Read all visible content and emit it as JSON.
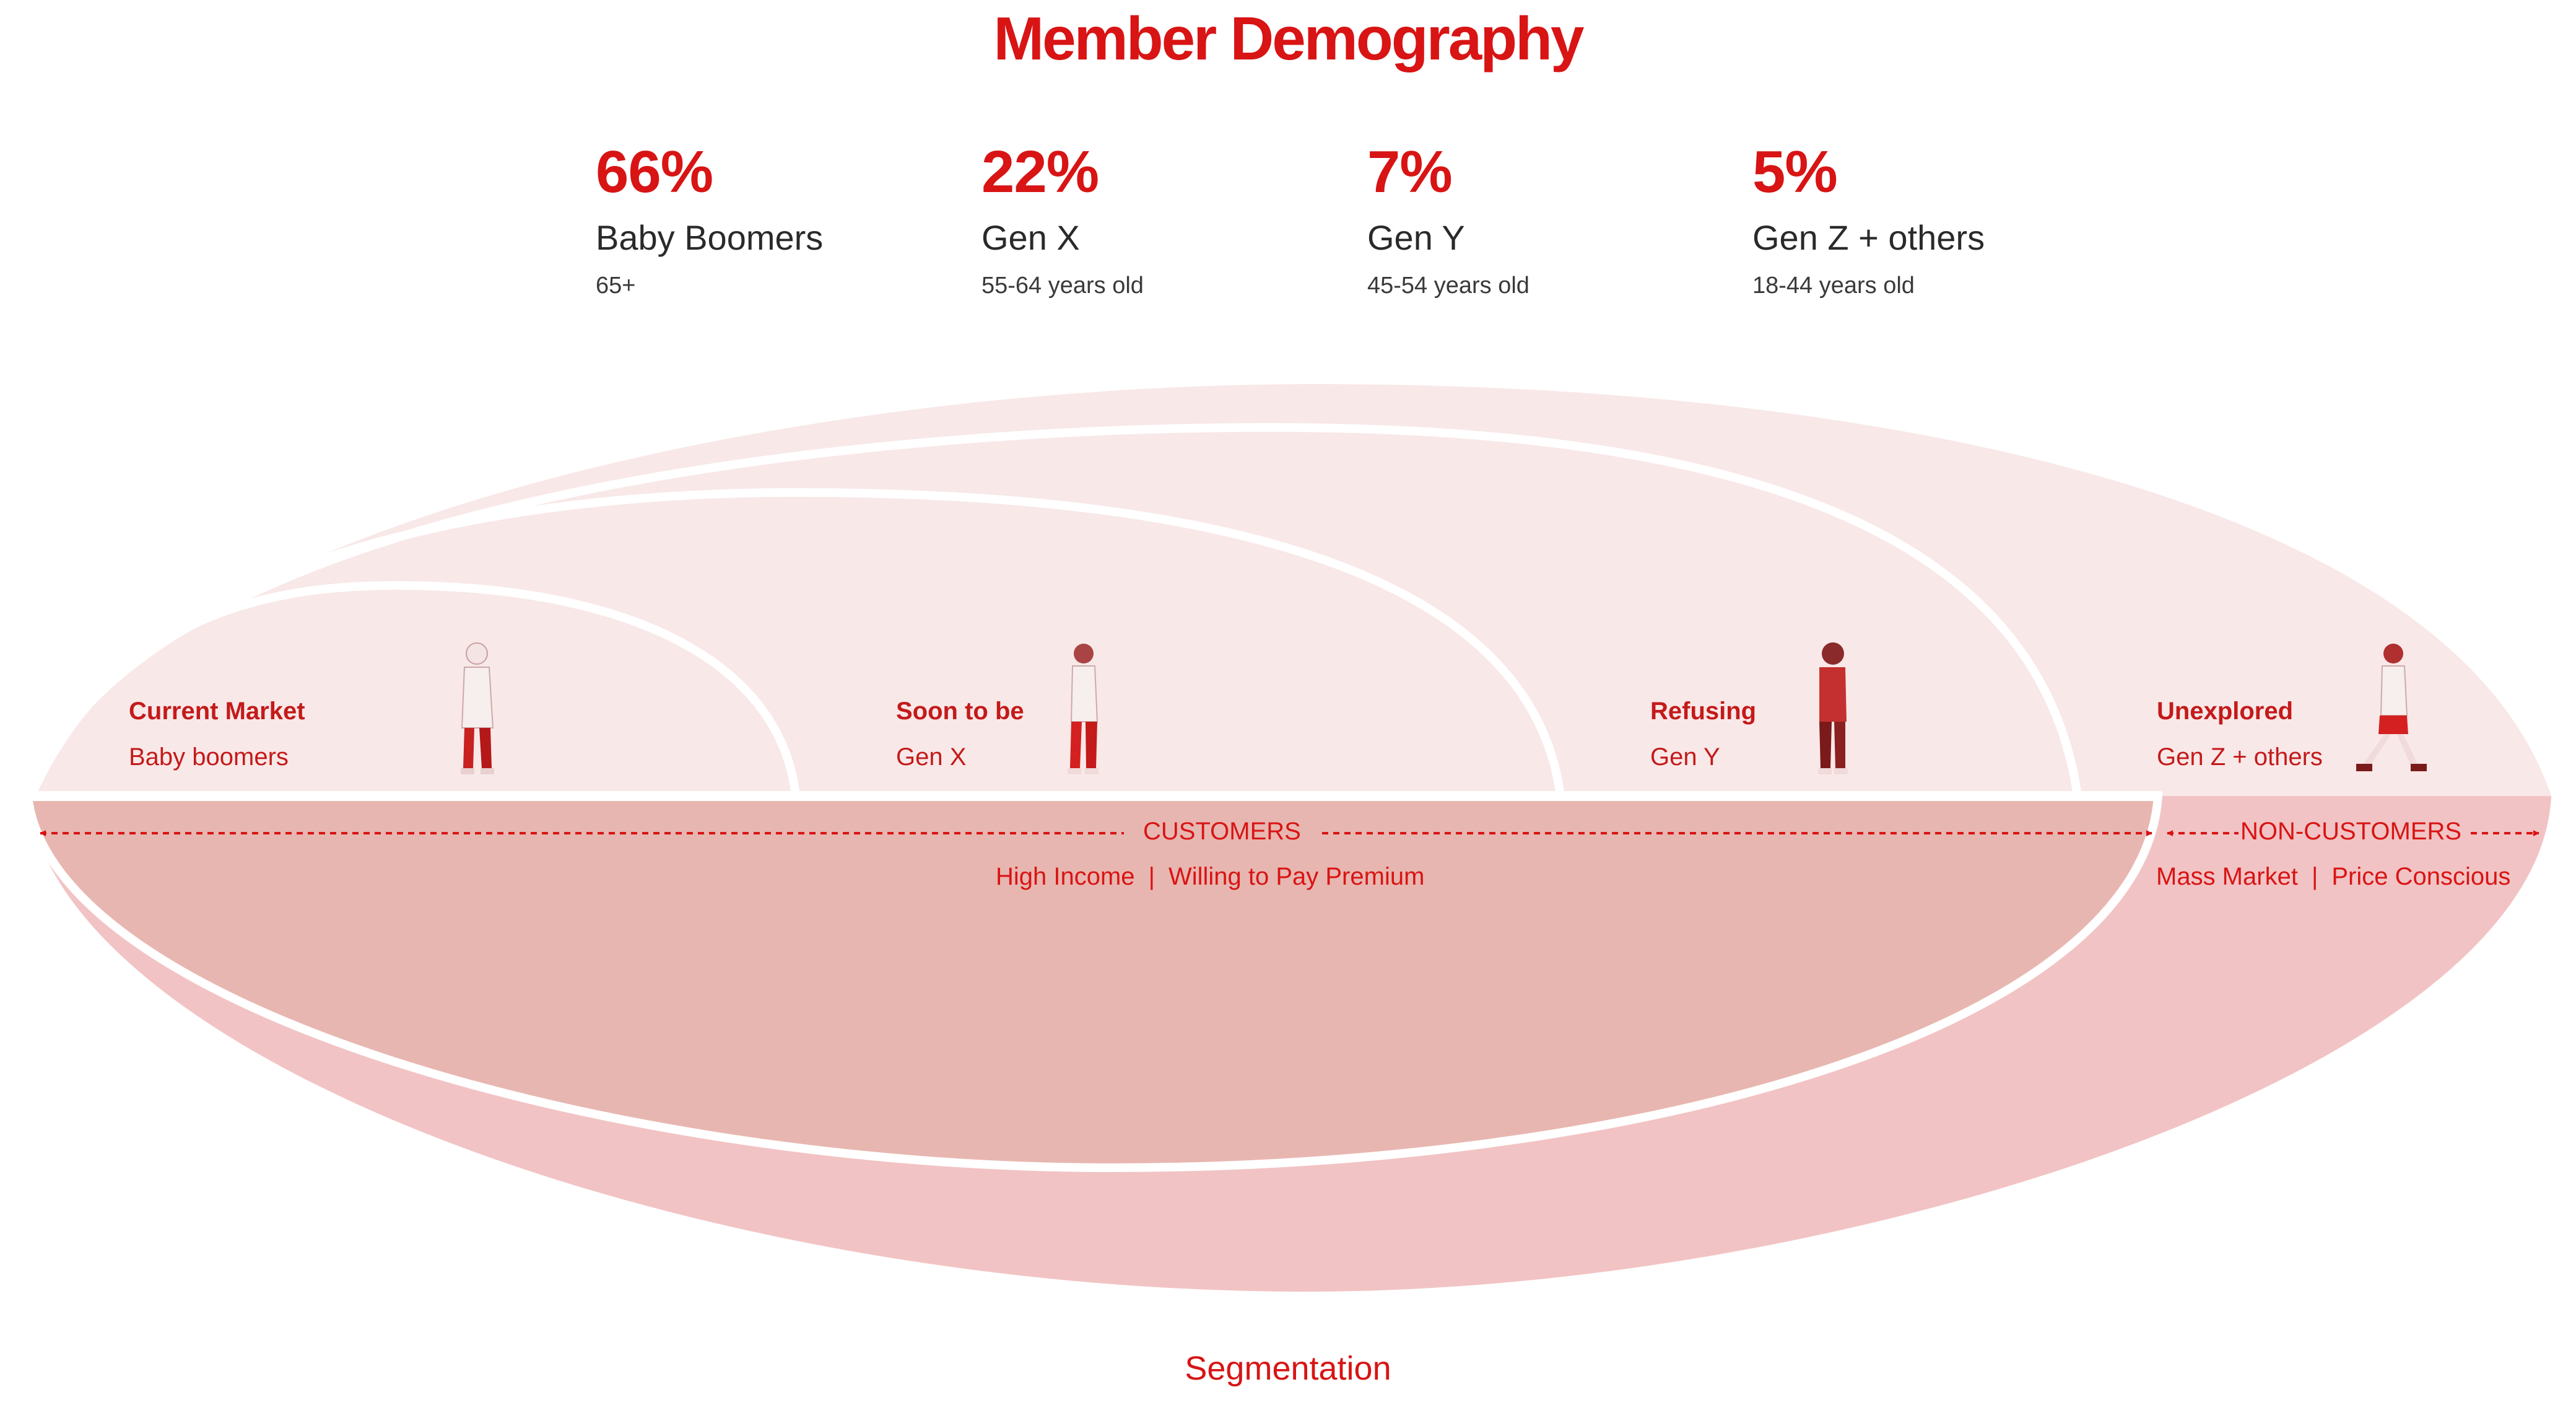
{
  "title": "Member Demography",
  "stats": [
    {
      "percent": "66%",
      "label": "Baby Boomers",
      "range": "65+"
    },
    {
      "percent": "22%",
      "label": "Gen X",
      "range": "55-64 years old"
    },
    {
      "percent": "7%",
      "label": "Gen Y",
      "range": "45-54 years old"
    },
    {
      "percent": "5%",
      "label": "Gen Z + others",
      "range": "18-44 years old"
    }
  ],
  "segments": [
    {
      "name": "Current Market",
      "sub": "Baby boomers"
    },
    {
      "name": "Soon to be",
      "sub": "Gen X"
    },
    {
      "name": "Refusing",
      "sub": "Gen Y"
    },
    {
      "name": "Unexplored",
      "sub": "Gen Z + others"
    }
  ],
  "customers": {
    "label": "CUSTOMERS",
    "attr1": "High Income",
    "separator": "|",
    "attr2": "Willing to Pay Premium"
  },
  "non_customers": {
    "label": "NON-CUSTOMERS",
    "attr1": "Mass Market",
    "separator": "|",
    "attr2": "Price Conscious"
  },
  "footer": "Segmentation",
  "colors": {
    "accent": "#d81414",
    "upper_fill": "#f9e8e8",
    "customers_fill": "#e8b6b0",
    "non_customers_fill": "#f2c3c4"
  },
  "icons": [
    "person-baby-boomer-icon",
    "person-gen-x-icon",
    "person-gen-y-icon",
    "person-gen-z-icon"
  ]
}
